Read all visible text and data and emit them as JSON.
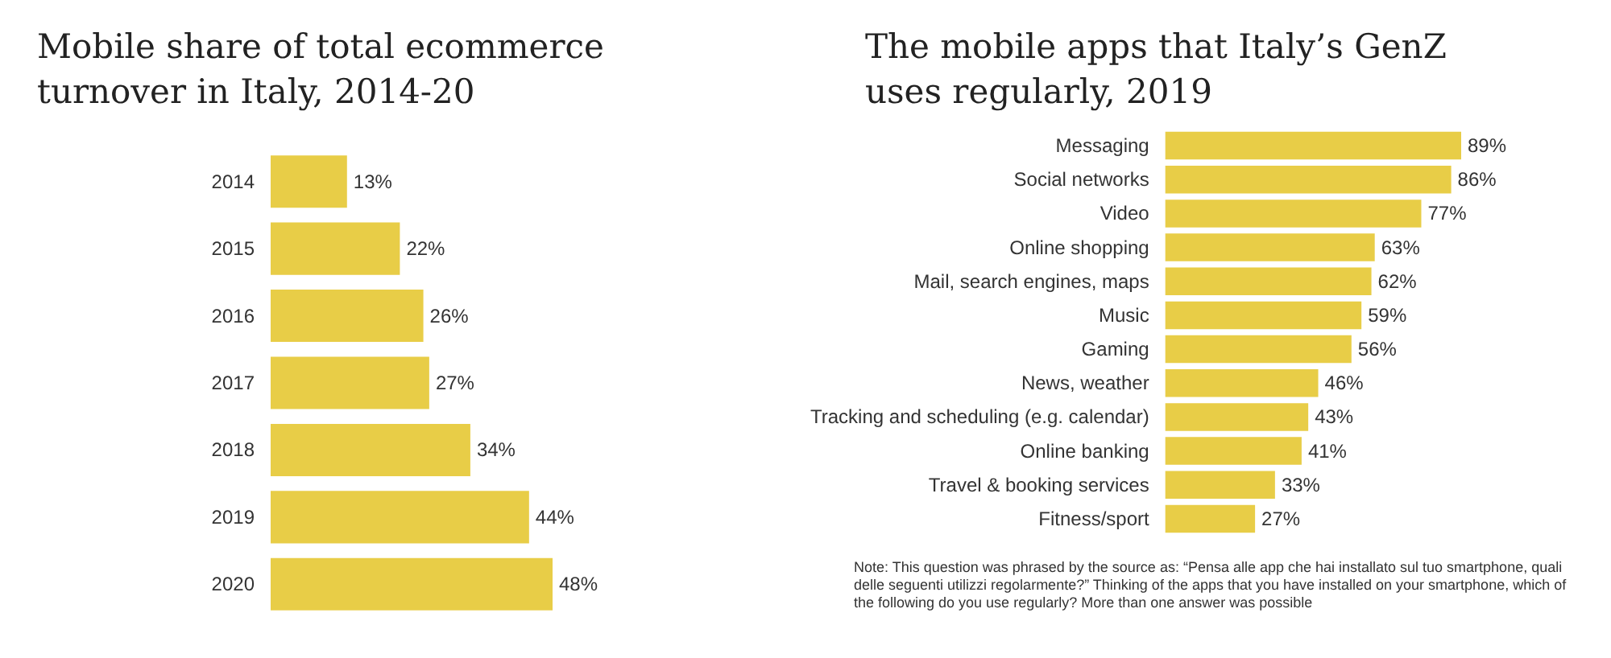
{
  "chart_data": [
    {
      "type": "bar",
      "orientation": "horizontal",
      "title": "Mobile share of total ecommerce turnover in Italy, 2014-20",
      "categories": [
        "2014",
        "2015",
        "2016",
        "2017",
        "2018",
        "2019",
        "2020"
      ],
      "values": [
        13,
        22,
        26,
        27,
        34,
        44,
        48
      ],
      "color": "#e8cd47",
      "value_labels": [
        "13%",
        "22%",
        "26%",
        "27%",
        "34%",
        "44%",
        "48%"
      ]
    },
    {
      "type": "bar",
      "orientation": "horizontal",
      "title": "The mobile apps that Italy’s GenZ uses regularly, 2019",
      "categories": [
        "Messaging",
        "Social networks",
        "Video",
        "Online shopping",
        "Mail, search engines, maps",
        "Music",
        "Gaming",
        "News, weather",
        "Tracking and scheduling (e.g. calendar)",
        "Online banking",
        "Travel & booking services",
        "Fitness/sport"
      ],
      "values": [
        89,
        86,
        77,
        63,
        62,
        59,
        56,
        46,
        43,
        41,
        33,
        27
      ],
      "color": "#e8cd47",
      "value_labels": [
        "89%",
        "86%",
        "77%",
        "63%",
        "62%",
        "59%",
        "56%",
        "46%",
        "43%",
        "41%",
        "33%",
        "27%"
      ],
      "annotations": [
        "Note: This question was phrased by the source as: “Pensa alle app che hai installato sul tuo smartphone, quali delle seguenti utilizzi regolarmente?” Thinking of the apps that you have installed on your smartphone, which of the following do you use regularly? More than one answer was possible"
      ]
    }
  ]
}
